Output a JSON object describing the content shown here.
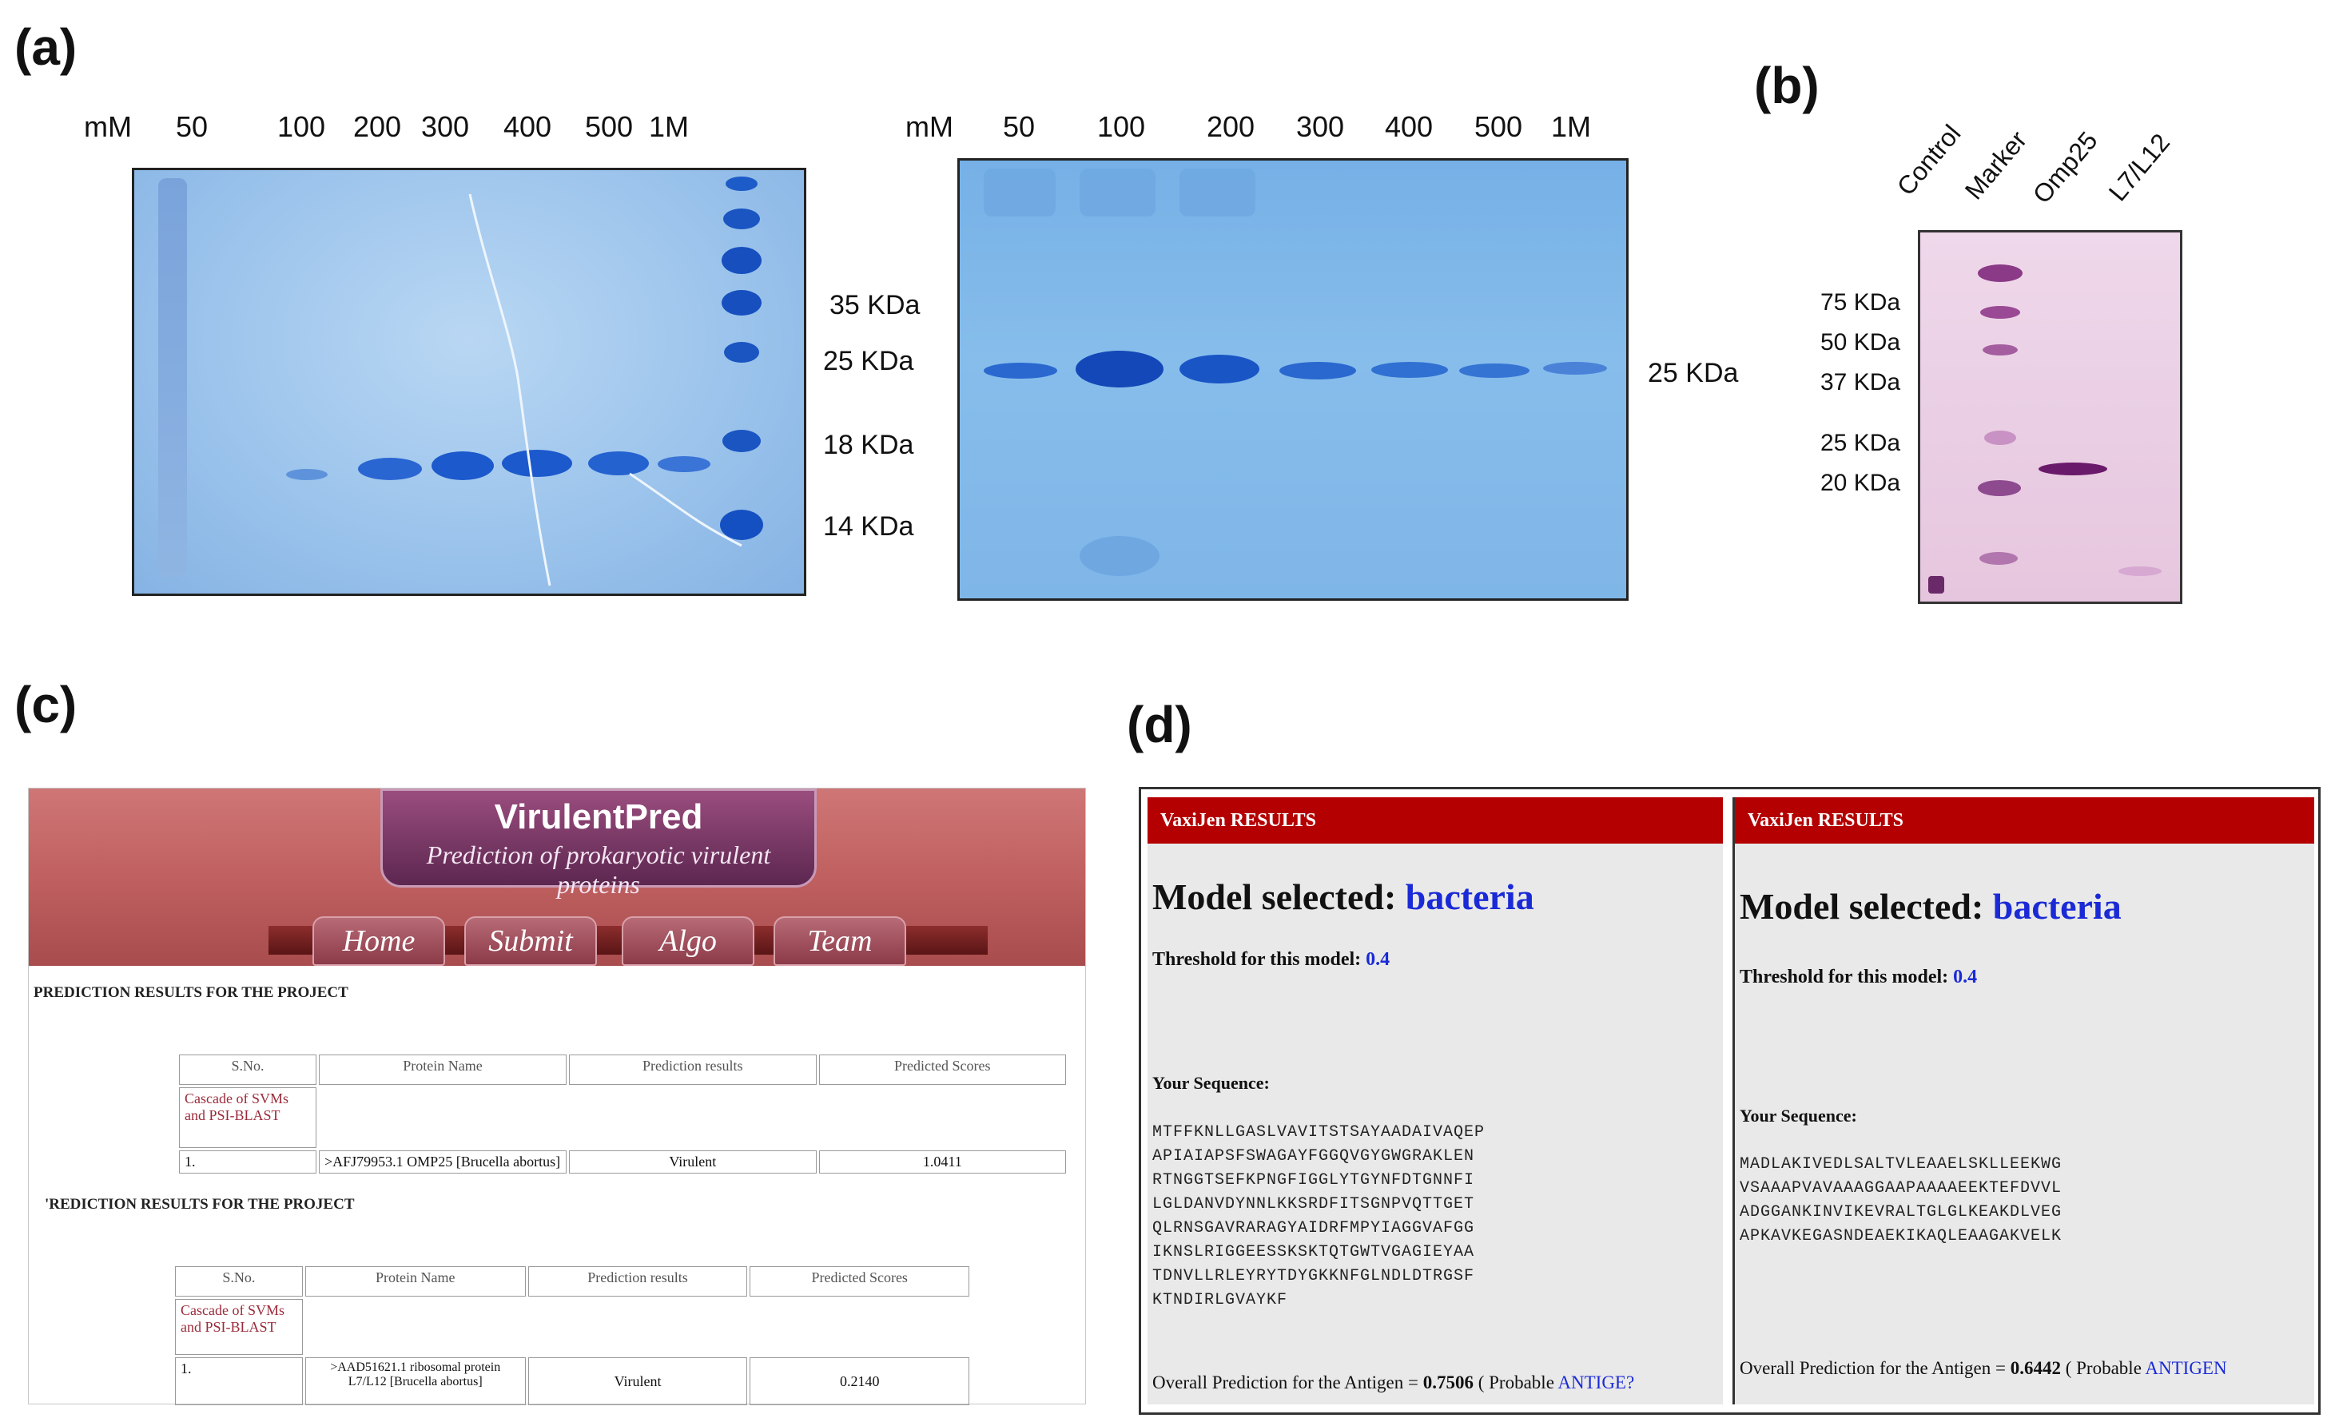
{
  "panels": {
    "a": "(a)",
    "b": "(b)",
    "c": "(c)",
    "d": "(d)"
  },
  "gel1": {
    "lanes": [
      "mM",
      "50",
      "100",
      "200",
      "300",
      "400",
      "500",
      "1M"
    ],
    "markers": [
      "35 KDa",
      "25 KDa",
      "18 KDa",
      "14 KDa"
    ]
  },
  "gel2": {
    "lanes": [
      "mM",
      "50",
      "100",
      "200",
      "300",
      "400",
      "500",
      "1M"
    ],
    "markers": [
      "25 KDa"
    ]
  },
  "blot": {
    "lanes": [
      "Control",
      "Marker",
      "Omp25",
      "L7/L12"
    ],
    "markers": [
      "75 KDa",
      "50 KDa",
      "37 KDa",
      "25 KDa",
      "20 KDa"
    ]
  },
  "virulentpred": {
    "title": "VirulentPred",
    "subtitle": "Prediction of prokaryotic virulent proteins",
    "nav": [
      "Home",
      "Submit",
      "Algo",
      "Team"
    ],
    "result1": {
      "heading": "PREDICTION RESULTS FOR THE PROJECT",
      "columns": [
        "S.No.",
        "Protein Name",
        "Prediction results",
        "Predicted Scores"
      ],
      "method": "Cascade of SVMs and PSI-BLAST",
      "row": [
        "1.",
        ">AFJ79953.1 OMP25 [Brucella abortus]",
        "Virulent",
        "1.0411"
      ]
    },
    "result2": {
      "heading": "'REDICTION RESULTS FOR THE PROJECT",
      "columns": [
        "S.No.",
        "Protein Name",
        "Prediction results",
        "Predicted Scores"
      ],
      "method": "Cascade of SVMs and PSI-BLAST",
      "row": [
        "1.",
        ">AAD51621.1 ribosomal protein L7/L12 [Brucella abortus]",
        "Virulent",
        "0.2140"
      ]
    }
  },
  "vaxijen": {
    "left": {
      "bar": "VaxiJen RESULTS",
      "model_label": "Model selected:",
      "model_value": "bacteria",
      "threshold_label": "Threshold for this model:",
      "threshold_value": "0.4",
      "your_sequence": "Your Sequence:",
      "sequence": "MTFFKNLLGASLVAVITSTSAYAADAIVAQEP\nAPIAIAPSFSWAGAYFGGQVGYGWGRAKLEN\nRTNGGTSEFKPNGFIGGLYTGYNFDTGNNFI\nLGLDANVDYNNLKKSRDFITSGNPVQTTGET\nQLRNSGAVRARAGYAIDRFMPYIAGGVAFGG\nIKNSLRIGGEESSKSKTQTGWTVGAGIEYAA\nTDNVLLRLEYRYTDYGKKNFGLNDLDTRGSF\nKTNDIRLGVAYKF",
      "overall_label": "Overall Prediction for the Antigen = ",
      "overall_value": "0.7506",
      "overall_tail": " ( Probable ",
      "overall_class": "ANTIGE?"
    },
    "right": {
      "bar": "VaxiJen RESULTS",
      "model_label": "Model selected:",
      "model_value": "bacteria",
      "threshold_label": "Threshold for this model:",
      "threshold_value": "0.4",
      "your_sequence": "Your Sequence:",
      "sequence": "MADLAKIVEDLSALTVLEAAELSKLLEEKWG\nVSAAAPVAVAAAGGAAPAAAAEEKTEFDVVL\nADGGANKINVIKEVRALTGLGLKEAKDLVEG\nAPKAVKEGASNDEAEKIKAQLEAAGAKVELK",
      "overall_label": "Overall Prediction for the Antigen = ",
      "overall_value": "0.6442",
      "overall_tail": " ( Probable ",
      "overall_class": "ANTIGEN"
    }
  },
  "colors": {
    "gel_blue": "#86b3e4",
    "band_blue": "#1a58c8",
    "blot_pink": "#e9cde3",
    "vaxijen_red": "#b40000",
    "vp_rose": "#c06060"
  }
}
